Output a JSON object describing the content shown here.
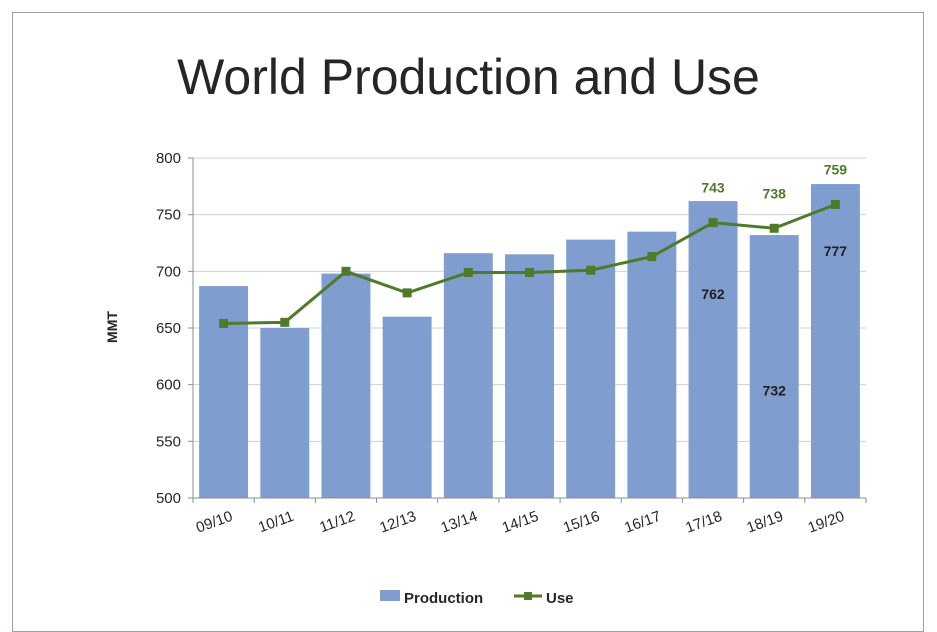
{
  "chart_data": {
    "type": "bar",
    "title": "World Production and Use",
    "ylabel": "MMT",
    "ylim": [
      500,
      800
    ],
    "yticks": [
      500,
      550,
      600,
      650,
      700,
      750,
      800
    ],
    "grid": true,
    "legend_placement": "bottom",
    "categories": [
      "09/10",
      "10/11",
      "11/12",
      "12/13",
      "13/14",
      "14/15",
      "15/16",
      "16/17",
      "17/18",
      "18/19",
      "19/20"
    ],
    "series": [
      {
        "name": "Production",
        "type": "bar",
        "color": "#7f9ecf",
        "values": [
          687,
          650,
          698,
          660,
          716,
          715,
          728,
          735,
          762,
          732,
          777
        ],
        "labels": [
          "",
          "",
          "",
          "",
          "",
          "",
          "",
          "",
          "762",
          "732",
          "777"
        ],
        "label_values": [
          null,
          null,
          null,
          null,
          null,
          null,
          null,
          null,
          680,
          595,
          718
        ]
      },
      {
        "name": "Use",
        "type": "line",
        "color": "#4e7a2a",
        "marker": "square",
        "values": [
          654,
          655,
          700,
          681,
          699,
          699,
          701,
          713,
          743,
          738,
          759
        ],
        "labels": [
          "",
          "",
          "",
          "",
          "",
          "",
          "",
          "",
          "743",
          "738",
          "759"
        ]
      }
    ]
  }
}
